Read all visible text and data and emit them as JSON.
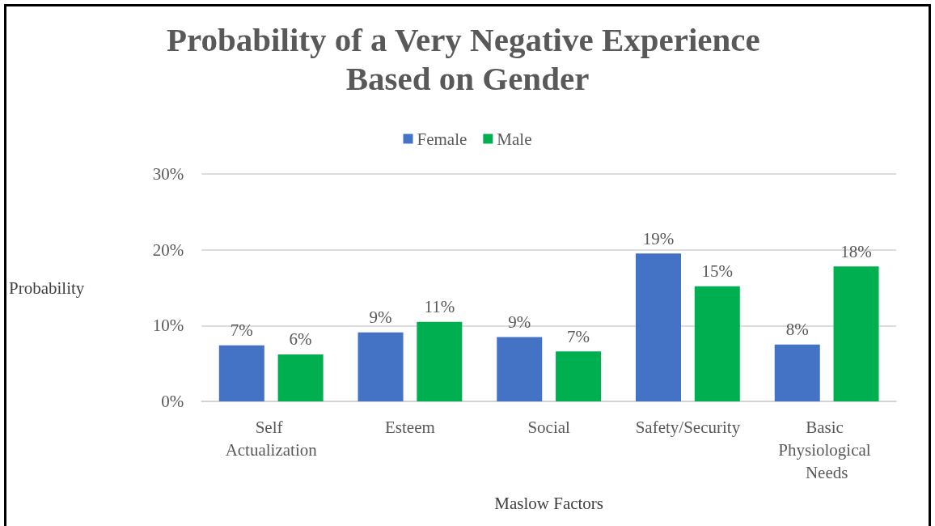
{
  "chart_data": {
    "type": "bar",
    "title": "Probability of a Very Negative Experience Based on Gender",
    "xlabel": "Maslow Factors",
    "ylabel": "Probability",
    "categories": [
      "Self Actualization",
      "Esteem",
      "Social",
      "Safety/Security",
      "Basic Physiological Needs"
    ],
    "series": [
      {
        "name": "Female",
        "color": "#4472c4",
        "values": [
          7.4,
          9.1,
          8.5,
          19.5,
          7.5
        ],
        "value_labels": [
          "7%",
          "9%",
          "9%",
          "19%",
          "8%"
        ]
      },
      {
        "name": "Male",
        "color": "#00b050",
        "values": [
          6.2,
          10.5,
          6.6,
          15.2,
          17.8
        ],
        "value_labels": [
          "6%",
          "11%",
          "7%",
          "15%",
          "18%"
        ]
      }
    ],
    "ylim": [
      0,
      30
    ],
    "yticks": [
      {
        "value": 0,
        "label": "0%"
      },
      {
        "value": 10,
        "label": "10%"
      },
      {
        "value": 20,
        "label": "20%"
      },
      {
        "value": 30,
        "label": "30%"
      }
    ],
    "grid": "y",
    "legend": "top"
  }
}
